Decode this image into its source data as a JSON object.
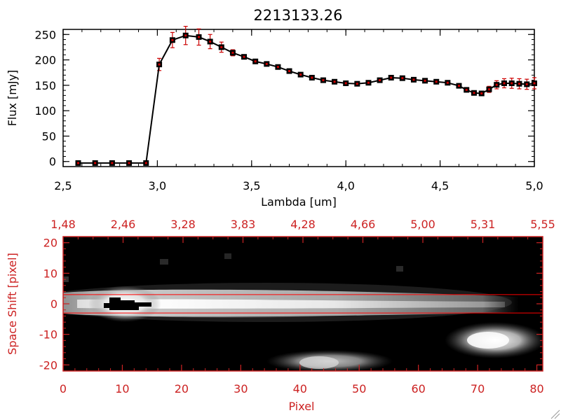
{
  "chart_data": [
    {
      "type": "line",
      "title": "2213133.26",
      "xlabel": "Lambda [um]",
      "ylabel": "Flux [mJy]",
      "xlim": [
        2.5,
        5.0
      ],
      "ylim": [
        -10,
        260
      ],
      "x_ticks": [
        "2.5",
        "3.0",
        "3.5",
        "4.0",
        "4.5",
        "5.0"
      ],
      "y_ticks": [
        "0",
        "50",
        "100",
        "150",
        "200",
        "250"
      ],
      "series": [
        {
          "x": [
            2.58,
            2.67,
            2.76,
            2.85,
            2.94,
            3.01,
            3.08,
            3.15,
            3.22,
            3.28,
            3.34,
            3.4,
            3.46,
            3.52,
            3.58,
            3.64,
            3.7,
            3.76,
            3.82,
            3.88,
            3.94,
            4.0,
            4.06,
            4.12,
            4.18,
            4.24,
            4.3,
            4.36,
            4.42,
            4.48,
            4.54,
            4.6,
            4.64,
            4.68,
            4.72,
            4.76,
            4.8,
            4.84,
            4.88,
            4.92,
            4.96,
            5.0
          ],
          "y": [
            -3,
            -3,
            -3,
            -3,
            -3,
            191,
            239,
            248,
            245,
            236,
            225,
            214,
            206,
            197,
            192,
            186,
            178,
            171,
            165,
            160,
            157,
            154,
            153,
            155,
            160,
            165,
            164,
            161,
            159,
            157,
            155,
            149,
            141,
            135,
            134,
            142,
            151,
            154,
            154,
            153,
            152,
            154
          ],
          "yerr": [
            0,
            0,
            0,
            0,
            0,
            12,
            15,
            18,
            16,
            14,
            10,
            6,
            4,
            3,
            3,
            3,
            3,
            3,
            3,
            3,
            3,
            3,
            3,
            3,
            3,
            3,
            3,
            3,
            3,
            3,
            3,
            3,
            3,
            3,
            4,
            6,
            8,
            9,
            10,
            10,
            10,
            11
          ]
        }
      ],
      "colors": {
        "line": "#000000",
        "marker": "#000000",
        "errorbar": "#cc0000"
      }
    },
    {
      "type": "heatmap",
      "xlabel": "Pixel",
      "ylabel": "Space Shift [pixel]",
      "xlim": [
        0,
        81
      ],
      "ylim": [
        -22,
        22
      ],
      "x_ticks": [
        "0",
        "10",
        "20",
        "30",
        "40",
        "50",
        "60",
        "70",
        "80"
      ],
      "y_ticks": [
        "-20",
        "-10",
        "0",
        "10",
        "20"
      ],
      "top_axis_ticks": [
        "1.48",
        "2.46",
        "3.28",
        "3.83",
        "4.28",
        "4.66",
        "5.00",
        "5.31",
        "5.55"
      ],
      "aperture_lines_y": [
        3,
        -3
      ],
      "features": [
        {
          "label": "main trace",
          "center_y": 0,
          "x_from": 0,
          "x_to": 77,
          "peak_x": 10
        },
        {
          "label": "secondary source",
          "center_y": -11,
          "x_from": 64,
          "x_to": 81,
          "peak_x": 71
        },
        {
          "label": "faint source",
          "center_y": -18,
          "x_from": 38,
          "x_to": 62,
          "peak_x": 45
        }
      ],
      "colors": {
        "axes": "#cc2222",
        "background": "#000000",
        "aperture_line": "#ff0000"
      }
    }
  ]
}
